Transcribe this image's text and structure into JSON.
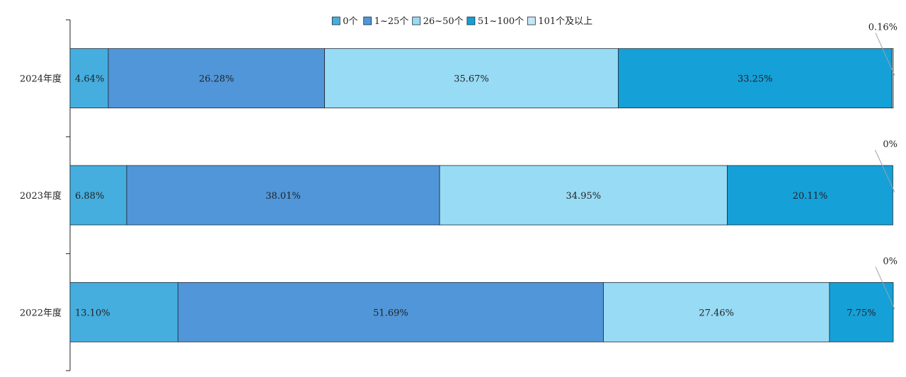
{
  "chart_data": {
    "type": "bar",
    "orientation": "horizontal",
    "stacked": true,
    "normalized_percent": true,
    "categories": [
      "2024年度",
      "2023年度",
      "2022年度"
    ],
    "series": [
      {
        "name": "0个",
        "color": "#45aedf",
        "values": [
          4.64,
          6.88,
          13.1
        ],
        "labels": [
          "4.64%",
          "6.88%",
          "13.10%"
        ]
      },
      {
        "name": "1~25个",
        "color": "#5096d9",
        "values": [
          26.28,
          38.01,
          51.69
        ],
        "labels": [
          "26.28%",
          "38.01%",
          "51.69%"
        ]
      },
      {
        "name": "26~50个",
        "color": "#98dbf5",
        "values": [
          35.67,
          34.95,
          27.46
        ],
        "labels": [
          "35.67%",
          "34.95%",
          "27.46%"
        ]
      },
      {
        "name": "51~100个",
        "color": "#15a0d8",
        "values": [
          33.25,
          20.11,
          7.75
        ],
        "labels": [
          "33.25%",
          "20.11%",
          "7.75%"
        ]
      },
      {
        "name": "101个及以上",
        "color": "#c9e6f7",
        "values": [
          0.16,
          0.0,
          0.0
        ],
        "labels": [
          "0.16%",
          "0%",
          "0%"
        ]
      }
    ],
    "legend_position": "top-center",
    "title": "",
    "xlabel": "",
    "ylabel": "",
    "xlim": [
      0,
      100
    ],
    "grid": false
  }
}
